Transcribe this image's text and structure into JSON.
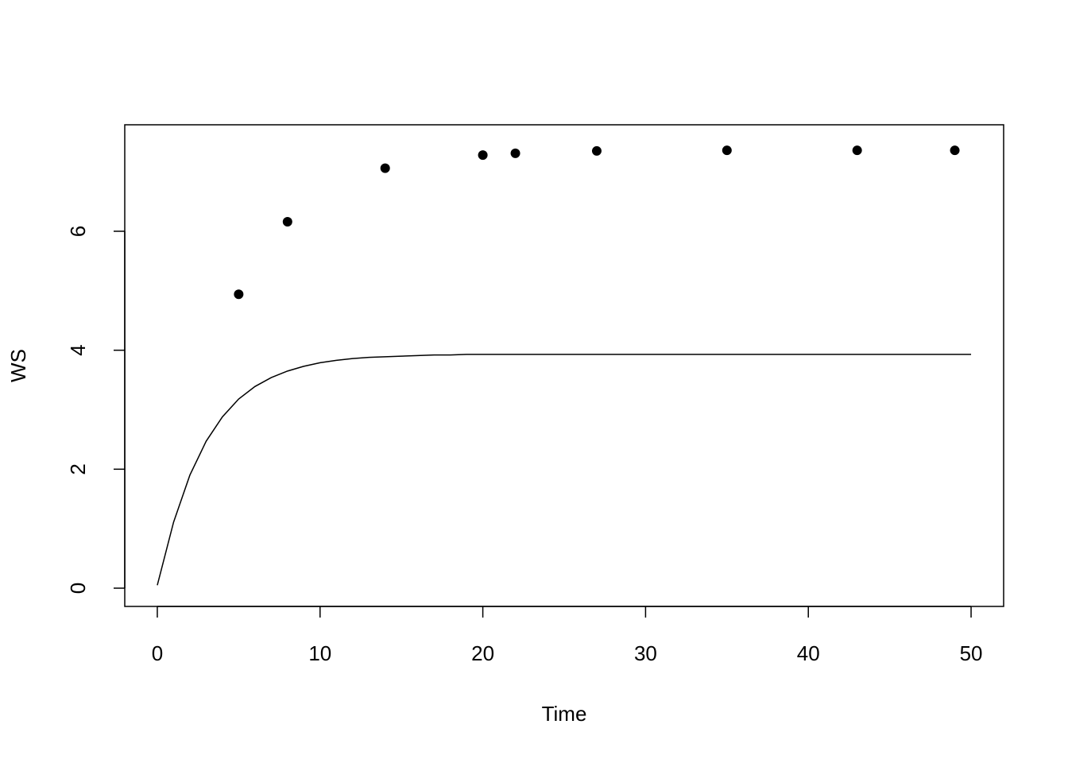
{
  "chart_data": {
    "type": "scatter",
    "xlabel": "Time",
    "ylabel": "WS",
    "xlim": [
      -2,
      52
    ],
    "ylim": [
      -0.307,
      7.79
    ],
    "xticks": [
      0,
      10,
      20,
      30,
      40,
      50
    ],
    "yticks": [
      0,
      2,
      4,
      6
    ],
    "grid": false,
    "series": [
      {
        "type": "line",
        "color": "#000000",
        "x": [
          0,
          1,
          2,
          3,
          4,
          5,
          6,
          7,
          8,
          9,
          10,
          11,
          12,
          13,
          14,
          15,
          16,
          17,
          18,
          19,
          20,
          50
        ],
        "values": [
          0.05,
          1.11,
          1.9,
          2.47,
          2.88,
          3.18,
          3.39,
          3.54,
          3.65,
          3.73,
          3.79,
          3.83,
          3.86,
          3.88,
          3.89,
          3.9,
          3.91,
          3.92,
          3.92,
          3.93,
          3.93,
          3.93
        ]
      },
      {
        "type": "scatter",
        "color": "#000000",
        "x": [
          5,
          8,
          14,
          20,
          22,
          27,
          35,
          43,
          49
        ],
        "values": [
          4.94,
          6.16,
          7.06,
          7.28,
          7.31,
          7.35,
          7.36,
          7.36,
          7.36
        ]
      }
    ]
  }
}
